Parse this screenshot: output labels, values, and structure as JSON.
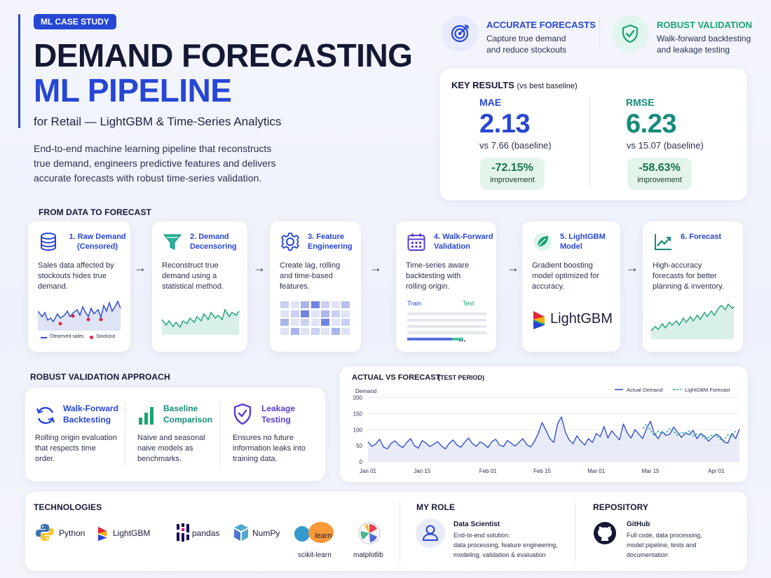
{
  "header": {
    "badge": "ML CASE STUDY",
    "title_line1": "DEMAND FORECASTING",
    "title_line2": "ML PIPELINE",
    "subtitle": "for Retail — LightGBM & Time-Series Analytics",
    "intro_lines": [
      "End-to-end machine learning pipeline that reconstructs",
      "true demand, engineers predictive features and delivers",
      "accurate forecasts with robust time-series validation."
    ]
  },
  "highlights": [
    {
      "title": "ACCURATE FORECASTS",
      "desc": [
        "Capture true demand",
        "and reduce stockouts"
      ],
      "icon": "target-icon",
      "color": "#2746d4"
    },
    {
      "title": "ROBUST VALIDATION",
      "desc": [
        "Walk-forward backtesting",
        "and leakage testing"
      ],
      "icon": "shield-check-icon",
      "color": "#1aa574"
    }
  ],
  "key_results": {
    "heading": "KEY RESULTS",
    "heading_note": "(vs best baseline)",
    "metrics": [
      {
        "label": "MAE",
        "value": "2.13",
        "vs": "vs 7.66 (baseline)",
        "improvement": "-72.15%",
        "improvement_label": "improvement",
        "color": "#2746d4"
      },
      {
        "label": "RMSE",
        "value": "6.23",
        "vs": "vs 15.07 (baseline)",
        "improvement": "-58.63%",
        "improvement_label": "improvement",
        "color": "#148c7a"
      }
    ]
  },
  "pipeline": {
    "title": "FROM DATA TO FORECAST",
    "steps": [
      {
        "title": [
          "1. Raw Demand",
          "(Censored)"
        ],
        "desc": [
          "Sales data affected by",
          "stockouts hides true",
          "demand."
        ],
        "icon": "database-icon"
      },
      {
        "title": [
          "2. Demand",
          "Decensoring"
        ],
        "desc": [
          "Reconstruct true",
          "demand using a",
          "statistical method."
        ],
        "icon": "funnel-icon"
      },
      {
        "title": [
          "3. Feature",
          "Engineering"
        ],
        "desc": [
          "Create lag, rolling",
          "and time-based",
          "features."
        ],
        "icon": "gear-icon"
      },
      {
        "title": [
          "4. Walk-Forward",
          "Validation"
        ],
        "desc": [
          "Time-series aware",
          "backtesting with",
          "rolling origin."
        ],
        "icon": "calendar-icon"
      },
      {
        "title": [
          "5. LightGBM",
          "Model"
        ],
        "desc": [
          "Gradient boosting",
          "model optimized for",
          "accuracy."
        ],
        "icon": "leaf-icon"
      },
      {
        "title": [
          "6. Forecast"
        ],
        "desc": [
          "High-accuracy",
          "forecasts for better",
          "planning & inventory."
        ],
        "icon": "trend-up-icon"
      }
    ],
    "raw_legend": {
      "observed": "Observed sales",
      "stockout": "Stockout"
    },
    "split_legend": {
      "train": "Train",
      "test": "Test"
    },
    "lightgbm_logo_text": "LightGBM",
    "ellipsis": "•••"
  },
  "validation": {
    "title": "ROBUST VALIDATION APPROACH",
    "items": [
      {
        "title": [
          "Walk-Forward",
          "Backtesting"
        ],
        "desc": [
          "Rolling origin evaluation",
          "that respects time",
          "order."
        ],
        "icon": "refresh-icon"
      },
      {
        "title": [
          "Baseline",
          "Comparison"
        ],
        "desc": [
          "Naive and seasonal",
          "naive models as",
          "benchmarks."
        ],
        "icon": "bar-chart-icon"
      },
      {
        "title": [
          "Leakage",
          "Testing"
        ],
        "desc": [
          "Ensures no future",
          "information leaks into",
          "training data."
        ],
        "icon": "shield-check-icon"
      }
    ]
  },
  "chart_data": {
    "type": "line",
    "title": "ACTUAL VS FORECAST",
    "subtitle": "(TEST PERIOD)",
    "ylabel": "Demand",
    "xlabel": "",
    "ylim": [
      0,
      210
    ],
    "yticks": [
      0,
      50,
      100,
      150,
      200
    ],
    "xticks": [
      "Jan 01",
      "Jan 15",
      "Feb 01",
      "Feb 15",
      "Mar 01",
      "Mar 15",
      "Apr 01"
    ],
    "xtick_days": [
      0,
      14,
      31,
      45,
      59,
      73,
      90
    ],
    "x_range_days": [
      0,
      96
    ],
    "legend_position": "top-right",
    "series": [
      {
        "name": "Actual Demand",
        "color": "#2746d4",
        "dash": false,
        "values": [
          62,
          48,
          55,
          70,
          46,
          40,
          58,
          65,
          52,
          44,
          60,
          72,
          50,
          42,
          66,
          58,
          47,
          55,
          63,
          49,
          40,
          57,
          68,
          52,
          45,
          61,
          74,
          56,
          48,
          62,
          55,
          44,
          63,
          70,
          52,
          47,
          66,
          58,
          49,
          60,
          72,
          54,
          46,
          63,
          88,
          122,
          98,
          72,
          60,
          118,
          140,
          92,
          68,
          56,
          81,
          64,
          52,
          72,
          60,
          88,
          78,
          110,
          74,
          96,
          82,
          68,
          118,
          90,
          74,
          100,
          86,
          72,
          104,
          126,
          88,
          72,
          94,
          82,
          86,
          108,
          92,
          76,
          90,
          84,
          98,
          72,
          88,
          80,
          64,
          76,
          86,
          78,
          62,
          58,
          88,
          72,
          102
        ]
      },
      {
        "name": "LightGBM Forecast",
        "color": "#19a68a",
        "dash": true,
        "values": [
          null,
          null,
          null,
          null,
          null,
          null,
          null,
          null,
          null,
          null,
          null,
          null,
          null,
          null,
          null,
          null,
          null,
          null,
          null,
          null,
          null,
          null,
          null,
          null,
          null,
          null,
          null,
          null,
          null,
          null,
          null,
          null,
          null,
          null,
          null,
          null,
          null,
          null,
          null,
          null,
          null,
          null,
          null,
          null,
          null,
          null,
          null,
          null,
          null,
          null,
          null,
          null,
          null,
          null,
          null,
          null,
          null,
          null,
          null,
          null,
          null,
          null,
          null,
          null,
          null,
          null,
          null,
          null,
          null,
          null,
          null,
          104,
          118,
          98,
          82,
          96,
          88,
          90,
          104,
          94,
          82,
          92,
          88,
          96,
          80,
          86,
          84,
          72,
          76,
          84,
          80,
          70,
          66,
          84,
          78,
          96
        ]
      }
    ]
  },
  "technologies": {
    "title": "TECHNOLOGIES",
    "items": [
      "Python",
      "LightGBM",
      "pandas",
      "NumPy",
      "scikit-learn",
      "matplotlib"
    ],
    "sklearn_logo_text": "learn"
  },
  "role": {
    "title": "MY ROLE",
    "name": "Data Scientist",
    "desc": [
      "End-to-end solution:",
      "data processing, feature engineering,",
      "modeling, validation & evaluation"
    ]
  },
  "repository": {
    "title": "REPOSITORY",
    "name": "GitHub",
    "desc": [
      "Full code, data processing,",
      "model pipeline, tests and",
      "documentation"
    ]
  }
}
